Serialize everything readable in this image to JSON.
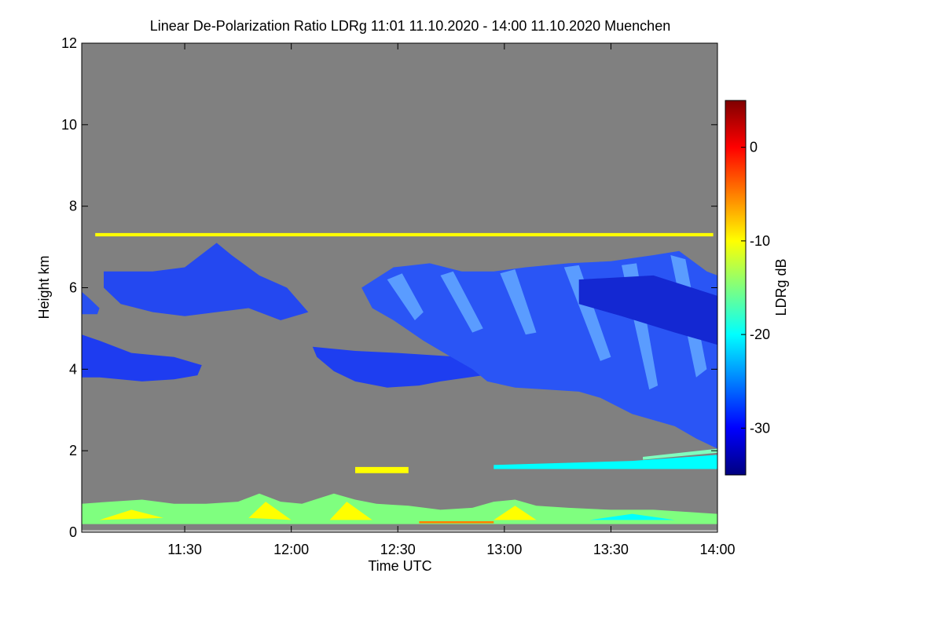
{
  "chart_data": {
    "type": "heatmap",
    "title": "Linear De-Polarization Ratio LDRg   11:01 11.10.2020 - 14:00 11.10.2020 Muenchen",
    "xlabel": "Time UTC",
    "ylabel": "Height km",
    "xlim_hours": [
      11.0167,
      14.0
    ],
    "ylim": [
      0,
      12
    ],
    "x_ticks": [
      {
        "value": 11.5,
        "label": "11:30"
      },
      {
        "value": 12.0,
        "label": "12:00"
      },
      {
        "value": 12.5,
        "label": "12:30"
      },
      {
        "value": 13.0,
        "label": "13:00"
      },
      {
        "value": 13.5,
        "label": "13:30"
      },
      {
        "value": 14.0,
        "label": "14:00"
      }
    ],
    "y_ticks": [
      {
        "value": 0,
        "label": "0"
      },
      {
        "value": 2,
        "label": "2"
      },
      {
        "value": 4,
        "label": "4"
      },
      {
        "value": 6,
        "label": "6"
      },
      {
        "value": 8,
        "label": "8"
      },
      {
        "value": 10,
        "label": "10"
      },
      {
        "value": 12,
        "label": "12"
      }
    ],
    "background_color": "#808080",
    "colorbar": {
      "label": "LDRg dB",
      "range": [
        -35,
        5
      ],
      "ticks": [
        {
          "value": 0,
          "label": "0"
        },
        {
          "value": -10,
          "label": "-10"
        },
        {
          "value": -20,
          "label": "-20"
        },
        {
          "value": -30,
          "label": "-30"
        }
      ],
      "colors": [
        "#00007f",
        "#0000ff",
        "#007fff",
        "#00ffff",
        "#7fff7f",
        "#ffff00",
        "#ff7f00",
        "#ff0000",
        "#7f0000"
      ]
    },
    "features": [
      {
        "name": "upper-cirrus-band",
        "color": "#2448f0",
        "points": [
          [
            11.12,
            6.4
          ],
          [
            11.35,
            6.4
          ],
          [
            11.5,
            6.5
          ],
          [
            11.65,
            7.1
          ],
          [
            11.72,
            6.8
          ],
          [
            11.85,
            6.3
          ],
          [
            11.98,
            6.0
          ],
          [
            12.08,
            5.4
          ],
          [
            11.95,
            5.2
          ],
          [
            11.8,
            5.5
          ],
          [
            11.65,
            5.4
          ],
          [
            11.5,
            5.3
          ],
          [
            11.35,
            5.4
          ],
          [
            11.2,
            5.6
          ],
          [
            11.12,
            6.0
          ]
        ]
      },
      {
        "name": "lower-cloud-band-left",
        "color": "#1e3cf0",
        "points": [
          [
            11.0167,
            4.85
          ],
          [
            11.1,
            4.7
          ],
          [
            11.25,
            4.4
          ],
          [
            11.35,
            4.35
          ],
          [
            11.45,
            4.3
          ],
          [
            11.58,
            4.1
          ],
          [
            11.56,
            3.85
          ],
          [
            11.45,
            3.75
          ],
          [
            11.3,
            3.7
          ],
          [
            11.1,
            3.8
          ],
          [
            11.0167,
            3.8
          ]
        ]
      },
      {
        "name": "left-edge-cirrus",
        "color": "#2850f0",
        "points": [
          [
            11.0167,
            5.9
          ],
          [
            11.05,
            5.75
          ],
          [
            11.1,
            5.5
          ],
          [
            11.09,
            5.35
          ],
          [
            11.0167,
            5.35
          ]
        ]
      },
      {
        "name": "mid-cloud-band",
        "color": "#1e3ef0",
        "points": [
          [
            12.1,
            4.55
          ],
          [
            12.3,
            4.45
          ],
          [
            12.5,
            4.4
          ],
          [
            12.65,
            4.35
          ],
          [
            12.8,
            4.3
          ],
          [
            12.95,
            4.0
          ],
          [
            12.9,
            3.85
          ],
          [
            12.7,
            3.7
          ],
          [
            12.6,
            3.6
          ],
          [
            12.45,
            3.55
          ],
          [
            12.3,
            3.7
          ],
          [
            12.2,
            3.95
          ],
          [
            12.12,
            4.3
          ]
        ]
      },
      {
        "name": "thick-cirrus-mass",
        "color": "#2a55f5",
        "points": [
          [
            12.33,
            6.0
          ],
          [
            12.48,
            6.5
          ],
          [
            12.65,
            6.6
          ],
          [
            12.8,
            6.4
          ],
          [
            12.95,
            6.4
          ],
          [
            13.1,
            6.5
          ],
          [
            13.3,
            6.6
          ],
          [
            13.5,
            6.65
          ],
          [
            13.7,
            6.8
          ],
          [
            13.82,
            6.9
          ],
          [
            13.95,
            6.4
          ],
          [
            14.0,
            6.3
          ],
          [
            14.0,
            2.05
          ],
          [
            13.9,
            2.3
          ],
          [
            13.8,
            2.6
          ],
          [
            13.6,
            2.9
          ],
          [
            13.45,
            3.3
          ],
          [
            13.35,
            3.45
          ],
          [
            13.2,
            3.5
          ],
          [
            13.05,
            3.55
          ],
          [
            12.92,
            3.7
          ],
          [
            12.85,
            4.0
          ],
          [
            12.75,
            4.3
          ],
          [
            12.62,
            4.7
          ],
          [
            12.48,
            5.2
          ],
          [
            12.38,
            5.5
          ]
        ]
      },
      {
        "name": "streak-1",
        "color": "#5a9cff",
        "points": [
          [
            12.45,
            6.2
          ],
          [
            12.52,
            6.35
          ],
          [
            12.62,
            5.4
          ],
          [
            12.58,
            5.2
          ]
        ]
      },
      {
        "name": "streak-2",
        "color": "#5a9cff",
        "points": [
          [
            12.7,
            6.3
          ],
          [
            12.76,
            6.4
          ],
          [
            12.9,
            5.0
          ],
          [
            12.85,
            4.9
          ]
        ]
      },
      {
        "name": "streak-3",
        "color": "#5a9cff",
        "points": [
          [
            12.98,
            6.35
          ],
          [
            13.05,
            6.45
          ],
          [
            13.15,
            4.9
          ],
          [
            13.1,
            4.85
          ]
        ]
      },
      {
        "name": "streak-4",
        "color": "#5a9cff",
        "points": [
          [
            13.28,
            6.5
          ],
          [
            13.35,
            6.55
          ],
          [
            13.5,
            4.3
          ],
          [
            13.45,
            4.2
          ]
        ]
      },
      {
        "name": "streak-5",
        "color": "#5a9cff",
        "points": [
          [
            13.55,
            6.55
          ],
          [
            13.62,
            6.6
          ],
          [
            13.72,
            3.6
          ],
          [
            13.68,
            3.5
          ]
        ]
      },
      {
        "name": "streak-6",
        "color": "#5a9cff",
        "points": [
          [
            13.78,
            6.8
          ],
          [
            13.85,
            6.7
          ],
          [
            13.95,
            4.0
          ],
          [
            13.9,
            3.8
          ]
        ]
      },
      {
        "name": "upper-dense-core",
        "color": "#1428d2",
        "points": [
          [
            13.35,
            6.2
          ],
          [
            13.7,
            6.3
          ],
          [
            14.0,
            5.8
          ],
          [
            14.0,
            4.6
          ],
          [
            13.8,
            4.9
          ],
          [
            13.55,
            5.3
          ],
          [
            13.35,
            5.6
          ]
        ]
      },
      {
        "name": "aerosol-layer-7km",
        "color": "#ffff00",
        "points": [
          [
            11.08,
            7.34
          ],
          [
            13.98,
            7.34
          ],
          [
            13.98,
            7.26
          ],
          [
            11.08,
            7.26
          ]
        ]
      },
      {
        "name": "boundary-layer",
        "color": "#7fff7f",
        "points": [
          [
            11.0167,
            0.2
          ],
          [
            11.0167,
            0.7
          ],
          [
            11.15,
            0.75
          ],
          [
            11.3,
            0.8
          ],
          [
            11.45,
            0.7
          ],
          [
            11.6,
            0.7
          ],
          [
            11.75,
            0.75
          ],
          [
            11.85,
            0.95
          ],
          [
            11.95,
            0.75
          ],
          [
            12.05,
            0.7
          ],
          [
            12.2,
            0.95
          ],
          [
            12.3,
            0.8
          ],
          [
            12.4,
            0.7
          ],
          [
            12.55,
            0.65
          ],
          [
            12.7,
            0.55
          ],
          [
            12.85,
            0.6
          ],
          [
            12.95,
            0.75
          ],
          [
            13.05,
            0.8
          ],
          [
            13.15,
            0.65
          ],
          [
            13.3,
            0.6
          ],
          [
            13.5,
            0.55
          ],
          [
            13.7,
            0.55
          ],
          [
            13.85,
            0.5
          ],
          [
            14.0,
            0.45
          ],
          [
            14.0,
            0.2
          ]
        ]
      },
      {
        "name": "boundary-layer-patch-1",
        "color": "#ffff00",
        "points": [
          [
            11.1,
            0.3
          ],
          [
            11.25,
            0.55
          ],
          [
            11.4,
            0.35
          ]
        ]
      },
      {
        "name": "boundary-layer-patch-2",
        "color": "#ffff00",
        "points": [
          [
            11.8,
            0.35
          ],
          [
            11.88,
            0.75
          ],
          [
            12.0,
            0.3
          ]
        ]
      },
      {
        "name": "boundary-layer-patch-3",
        "color": "#ffff00",
        "points": [
          [
            12.18,
            0.3
          ],
          [
            12.26,
            0.75
          ],
          [
            12.38,
            0.3
          ]
        ]
      },
      {
        "name": "boundary-layer-patch-4",
        "color": "#ffff00",
        "points": [
          [
            12.95,
            0.3
          ],
          [
            13.05,
            0.65
          ],
          [
            13.15,
            0.3
          ]
        ]
      },
      {
        "name": "boundary-layer-patch-5",
        "color": "#00ffff",
        "points": [
          [
            13.4,
            0.3
          ],
          [
            13.6,
            0.45
          ],
          [
            13.8,
            0.3
          ]
        ]
      },
      {
        "name": "surface-orange-line",
        "color": "#ff7f00",
        "points": [
          [
            12.6,
            0.27
          ],
          [
            12.95,
            0.27
          ],
          [
            12.95,
            0.22
          ],
          [
            12.6,
            0.22
          ]
        ]
      },
      {
        "name": "aerosol-streak-1.5km-left",
        "color": "#ffff00",
        "points": [
          [
            12.3,
            1.6
          ],
          [
            12.55,
            1.6
          ],
          [
            12.55,
            1.45
          ],
          [
            12.3,
            1.45
          ]
        ]
      },
      {
        "name": "aerosol-streak-1.5km-right",
        "color": "#00ffff",
        "points": [
          [
            12.95,
            1.65
          ],
          [
            13.6,
            1.75
          ],
          [
            14.0,
            1.9
          ],
          [
            14.0,
            1.55
          ],
          [
            13.6,
            1.55
          ],
          [
            12.95,
            1.55
          ]
        ]
      },
      {
        "name": "aerosol-streak-2km",
        "color": "#7fffbf",
        "points": [
          [
            13.65,
            1.85
          ],
          [
            14.0,
            2.05
          ],
          [
            14.0,
            1.95
          ],
          [
            13.65,
            1.78
          ]
        ]
      },
      {
        "name": "surface-grey-line",
        "color": "#c8c8c8",
        "points": [
          [
            11.0167,
            0.05
          ],
          [
            14.0,
            0.05
          ],
          [
            14.0,
            0.0
          ],
          [
            11.0167,
            0.0
          ]
        ]
      }
    ]
  }
}
